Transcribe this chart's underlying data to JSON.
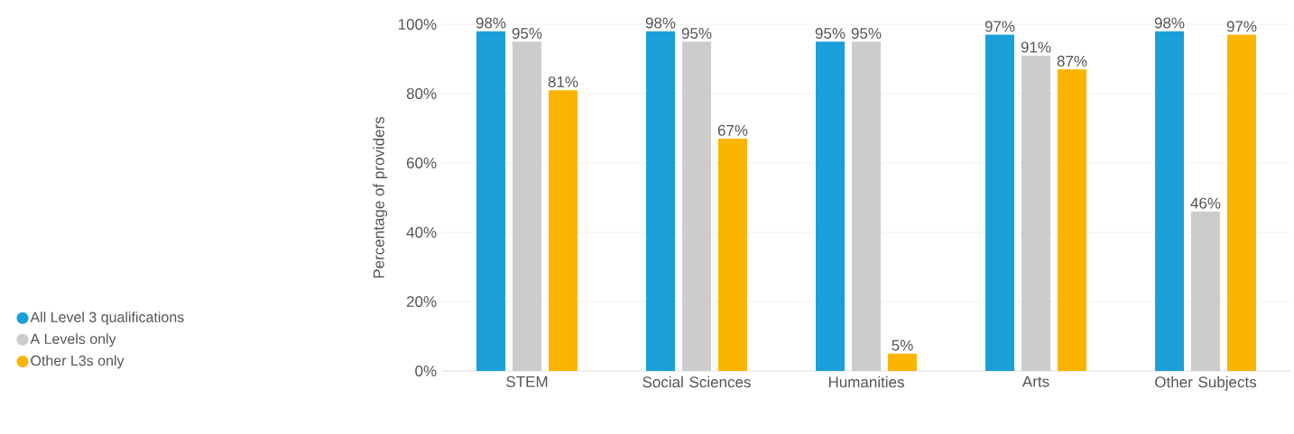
{
  "chart_data": {
    "type": "bar",
    "ylabel": "Percentage of providers",
    "categories": [
      "STEM",
      "Social Sciences",
      "Humanities",
      "Arts",
      "Other Subjects"
    ],
    "series": [
      {
        "name": "All Level 3 qualifications",
        "color": "#1a9fd9",
        "values": [
          98,
          98,
          95,
          97,
          98
        ],
        "value_labels": [
          "98%",
          "98%",
          "95%",
          "97%",
          "98%"
        ]
      },
      {
        "name": "A Levels only",
        "color": "#cccccc",
        "values": [
          95,
          95,
          95,
          91,
          46
        ],
        "value_labels": [
          "95%",
          "95%",
          "95%",
          "91%",
          "46%"
        ]
      },
      {
        "name": "Other L3s only",
        "color": "#fbb400",
        "values": [
          81,
          67,
          5,
          87,
          97
        ],
        "value_labels": [
          "81%",
          "67%",
          "5%",
          "87%",
          "97%"
        ]
      }
    ],
    "ylim": [
      0,
      100
    ],
    "yticks": [
      {
        "value": 0,
        "label": "0%"
      },
      {
        "value": 20,
        "label": "20%"
      },
      {
        "value": 40,
        "label": "40%"
      },
      {
        "value": 60,
        "label": "60%"
      },
      {
        "value": 80,
        "label": "80%"
      },
      {
        "value": 100,
        "label": "100%"
      }
    ],
    "grid": "y",
    "legend": "left"
  }
}
